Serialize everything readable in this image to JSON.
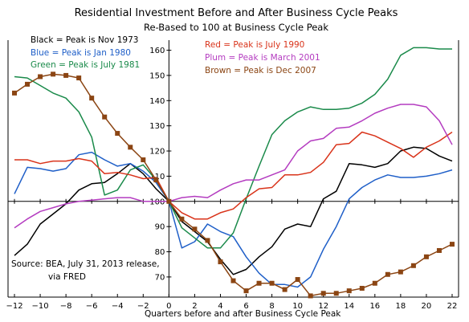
{
  "chart_data": {
    "type": "line",
    "title": "Residential Investment Before and After Business Cycle Peaks",
    "subtitle": "Re-Based to 100 at Business Cycle Peak",
    "xlabel": "Quarters before and after Business Cycle Peak",
    "ylabel": "",
    "xlim": [
      -12.5,
      22.5
    ],
    "ylim": [
      62,
      164
    ],
    "xticks": [
      -12,
      -10,
      -8,
      -6,
      -4,
      -2,
      0,
      2,
      4,
      6,
      8,
      10,
      12,
      14,
      16,
      18,
      20,
      22
    ],
    "yticks": [
      70,
      80,
      90,
      100,
      110,
      120,
      130,
      140,
      150,
      160
    ],
    "grid": false,
    "source_text": [
      "Source:  BEA, July 31, 2013 release,",
      "via FRED"
    ],
    "legend": [
      {
        "text": "Black = Peak is Nov 1973",
        "color": "#000000"
      },
      {
        "text": "Blue = Peak is Jan 1980",
        "color": "#1f5fc8"
      },
      {
        "text": "Green = Peak is July 1981",
        "color": "#1a8a4a"
      },
      {
        "text": "Red = Peak is July 1990",
        "color": "#d9331a"
      },
      {
        "text": "Plum = Peak is March 2001",
        "color": "#b43cc0"
      },
      {
        "text": "Brown = Peak is Dec 2007",
        "color": "#8b4513"
      }
    ],
    "series": [
      {
        "color": "#000000",
        "marker": false,
        "x": [
          -12,
          -11,
          -10,
          -9,
          -8,
          -7,
          -6,
          -5,
          -4,
          -3,
          -2,
          -1,
          0,
          1,
          2,
          3,
          4,
          5,
          6,
          7,
          8,
          9,
          10,
          11,
          12,
          13,
          14,
          15,
          16,
          17,
          18,
          19,
          20,
          21,
          22
        ],
        "values": [
          78.5,
          83,
          91,
          95,
          99,
          104.5,
          107,
          107.5,
          111,
          115,
          111,
          105,
          100,
          92,
          88,
          84,
          77,
          71,
          73,
          78,
          82,
          89,
          91,
          90,
          101,
          104,
          115,
          114.5,
          113.5,
          115,
          120,
          121.5,
          121,
          118,
          116
        ]
      },
      {
        "color": "#1f5fc8",
        "marker": false,
        "x": [
          -12,
          -11,
          -10,
          -9,
          -8,
          -7,
          -6,
          -5,
          -4,
          -3,
          -2,
          -1,
          0,
          1,
          2,
          3,
          4,
          5,
          6,
          7,
          8,
          9,
          10,
          11,
          12,
          13,
          14,
          15,
          16,
          17,
          18,
          19,
          20,
          21,
          22
        ],
        "values": [
          103,
          113.5,
          113,
          112,
          113,
          118.5,
          119.5,
          116.5,
          114,
          115,
          112,
          107.5,
          100,
          81.5,
          84,
          91,
          88,
          86,
          78,
          71.5,
          67,
          67,
          66,
          70,
          81,
          90,
          101,
          105.5,
          108.5,
          110.5,
          109.5,
          109.5,
          110,
          111,
          112.5
        ]
      },
      {
        "color": "#1a8a4a",
        "marker": false,
        "x": [
          -12,
          -11,
          -10,
          -9,
          -8,
          -7,
          -6,
          -5,
          -4,
          -3,
          -2,
          -1,
          0,
          1,
          2,
          3,
          4,
          5,
          6,
          7,
          8,
          9,
          10,
          11,
          12,
          13,
          14,
          15,
          16,
          17,
          18,
          19,
          20,
          21,
          22
        ],
        "values": [
          149.5,
          149,
          146,
          143,
          141,
          135.5,
          125.5,
          102.5,
          104.5,
          112.5,
          114.5,
          108.5,
          100,
          89.5,
          85.5,
          81.5,
          81.5,
          87.5,
          101,
          114,
          126.5,
          132,
          135.5,
          137.5,
          136.5,
          136.5,
          137,
          139,
          142.5,
          148.5,
          158,
          161,
          161,
          160.5,
          160.5
        ]
      },
      {
        "color": "#d9331a",
        "marker": false,
        "x": [
          -12,
          -11,
          -10,
          -9,
          -8,
          -7,
          -6,
          -5,
          -4,
          -3,
          -2,
          -1,
          0,
          1,
          2,
          3,
          4,
          5,
          6,
          7,
          8,
          9,
          10,
          11,
          12,
          13,
          14,
          15,
          16,
          17,
          18,
          19,
          20,
          21,
          22
        ],
        "values": [
          116.5,
          116.5,
          115,
          116,
          116,
          117,
          116,
          111,
          111.5,
          110.5,
          109,
          109.5,
          100,
          95.5,
          93,
          93,
          95.5,
          97,
          101.5,
          105,
          105.5,
          110.5,
          110.5,
          111.5,
          115.5,
          122.5,
          123,
          127.5,
          126,
          123.5,
          121,
          117.5,
          121.5,
          124,
          127.5
        ]
      },
      {
        "color": "#b43cc0",
        "marker": false,
        "x": [
          -12,
          -11,
          -10,
          -9,
          -8,
          -7,
          -6,
          -5,
          -4,
          -3,
          -2,
          -1,
          0,
          1,
          2,
          3,
          4,
          5,
          6,
          7,
          8,
          9,
          10,
          11,
          12,
          13,
          14,
          15,
          16,
          17,
          18,
          19,
          20,
          21,
          22
        ],
        "values": [
          89.5,
          93,
          96,
          97.5,
          99,
          100,
          100.5,
          101,
          101.5,
          101.5,
          100,
          100,
          100,
          101.5,
          102,
          101.5,
          104.5,
          107,
          108.5,
          108.5,
          110.5,
          112.5,
          120,
          124,
          125,
          129,
          129.5,
          132,
          135,
          137,
          138.5,
          138.5,
          137.5,
          132,
          122.5
        ]
      },
      {
        "color": "#8b4513",
        "marker": true,
        "x": [
          -12,
          -11,
          -10,
          -9,
          -8,
          -7,
          -6,
          -5,
          -4,
          -3,
          -2,
          -1,
          0,
          1,
          2,
          3,
          4,
          5,
          6,
          7,
          8,
          9,
          10,
          11,
          12,
          13,
          14,
          15,
          16,
          17,
          18,
          19,
          20,
          21,
          22
        ],
        "values": [
          143,
          146.5,
          149.5,
          150.5,
          150,
          149,
          141,
          133.5,
          127,
          121.5,
          116.5,
          108.5,
          100,
          93,
          89,
          84.5,
          76,
          68.5,
          64.5,
          67.5,
          67.5,
          65,
          69,
          62.5,
          63.5,
          63.5,
          64.5,
          65.5,
          67.5,
          71,
          72,
          74.5,
          78,
          80.5,
          83
        ]
      }
    ]
  }
}
